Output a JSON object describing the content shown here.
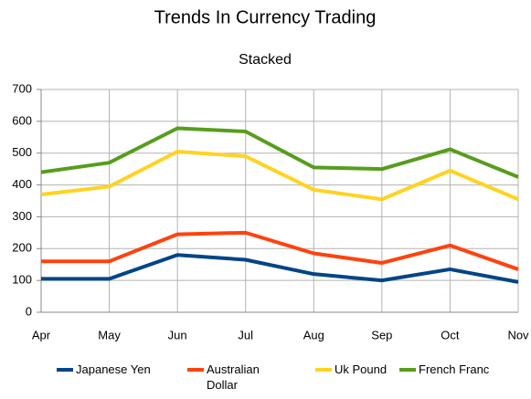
{
  "chart_data": {
    "type": "line",
    "stacked": true,
    "title": "Trends In Currency Trading",
    "subtitle": "Stacked",
    "categories": [
      "Apr",
      "May",
      "Jun",
      "Jul",
      "Aug",
      "Sep",
      "Oct",
      "Nov"
    ],
    "series": [
      {
        "name": "Japanese Yen",
        "color": "#004586",
        "values": [
          105,
          105,
          180,
          165,
          120,
          100,
          135,
          95
        ]
      },
      {
        "name": "Australian Dollar",
        "color": "#ff420e",
        "values": [
          55,
          55,
          65,
          85,
          65,
          55,
          75,
          40
        ]
      },
      {
        "name": "Uk Pound",
        "color": "#ffd320",
        "values": [
          210,
          235,
          260,
          240,
          200,
          200,
          235,
          220
        ]
      },
      {
        "name": "French Franc",
        "color": "#579d1c",
        "values": [
          70,
          75,
          73,
          78,
          70,
          95,
          67,
          70
        ]
      }
    ],
    "ylim": [
      0,
      700
    ],
    "yticks": [
      0,
      100,
      200,
      300,
      400,
      500,
      600,
      700
    ],
    "grid": true
  }
}
